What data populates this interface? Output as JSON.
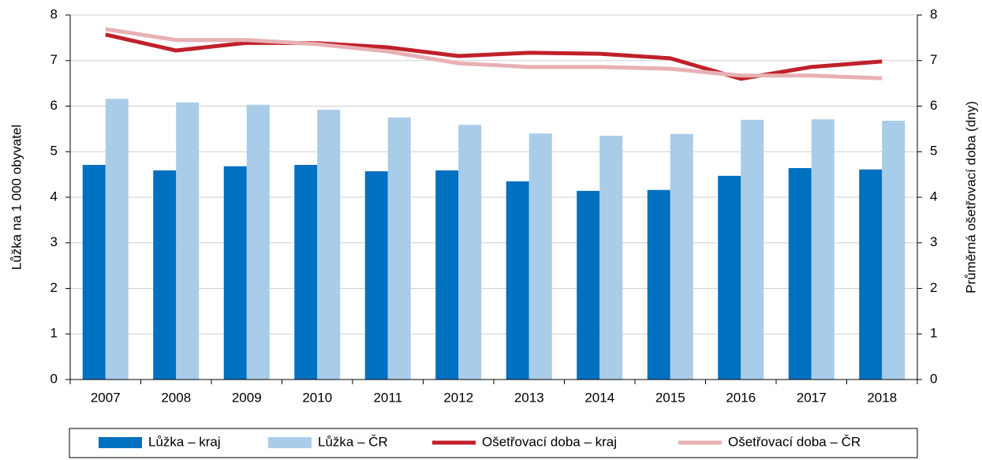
{
  "chart_data": {
    "type": "bar",
    "y_label": "Lůžka na 1 000 obyvatel",
    "y2_label": "Průměrná ošetřovací doba (dny)",
    "categories": [
      "2007",
      "2008",
      "2009",
      "2010",
      "2011",
      "2012",
      "2013",
      "2014",
      "2015",
      "2016",
      "2017",
      "2018"
    ],
    "series": [
      {
        "name": "Lůžka – kraj",
        "type": "bar",
        "color": "#0070c0",
        "values": [
          4.71,
          4.59,
          4.68,
          4.71,
          4.57,
          4.59,
          4.35,
          4.14,
          4.16,
          4.47,
          4.64,
          4.61
        ]
      },
      {
        "name": "Lůžka – ČR",
        "type": "bar",
        "color": "#a9cce9",
        "values": [
          6.16,
          6.08,
          6.03,
          5.92,
          5.75,
          5.59,
          5.4,
          5.35,
          5.39,
          5.7,
          5.71,
          5.68
        ]
      },
      {
        "name": "Ošetřovací doba – kraj",
        "type": "line",
        "axis": "y2",
        "color": "#c0202a",
        "values": [
          7.57,
          7.22,
          7.39,
          7.38,
          7.29,
          7.1,
          7.17,
          7.15,
          7.05,
          6.6,
          6.86,
          6.98
        ]
      },
      {
        "name": "Ošetřovací doba – ČR",
        "type": "line",
        "axis": "y2",
        "color": "#e8b0b4",
        "values": [
          7.69,
          7.45,
          7.45,
          7.36,
          7.2,
          6.94,
          6.86,
          6.86,
          6.82,
          6.67,
          6.67,
          6.61
        ]
      }
    ],
    "ylim": [
      0,
      8
    ],
    "yticks": [
      0,
      1,
      2,
      3,
      4,
      5,
      6,
      7,
      8
    ],
    "y2lim": [
      0,
      8
    ],
    "y2ticks": [
      0,
      1,
      2,
      3,
      4,
      5,
      6,
      7,
      8
    ],
    "grid": true,
    "legend": "bottom"
  }
}
